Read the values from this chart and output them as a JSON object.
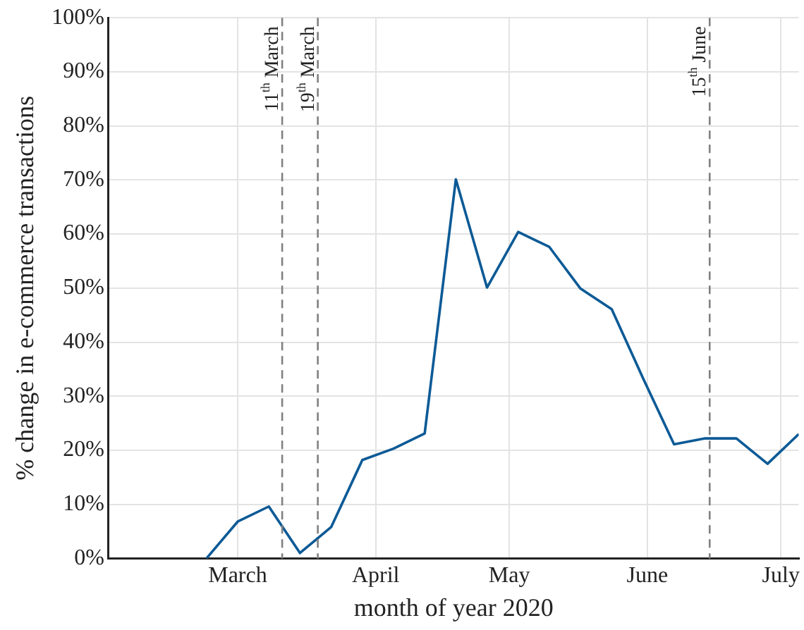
{
  "chart_data": {
    "type": "line",
    "xlabel": "month of year 2020",
    "ylabel": "% change in e-commerce transactions",
    "x": [
      "2020-02-23",
      "2020-03-01",
      "2020-03-08",
      "2020-03-15",
      "2020-03-22",
      "2020-03-29",
      "2020-04-05",
      "2020-04-12",
      "2020-04-19",
      "2020-04-26",
      "2020-05-03",
      "2020-05-10",
      "2020-05-17",
      "2020-05-24",
      "2020-05-31",
      "2020-06-07",
      "2020-06-14",
      "2020-06-21",
      "2020-06-28",
      "2020-07-05"
    ],
    "series": [
      {
        "color": "#0c5a96",
        "values": [
          0,
          6.8,
          9.6,
          1,
          5.8,
          18.2,
          20.3,
          23.1,
          70.1,
          50.1,
          60.4,
          57.6,
          49.9,
          46.1,
          33.4,
          21.1,
          22.2,
          22.2,
          17.5,
          23
        ]
      }
    ],
    "xlim": [
      "2020-02-01",
      "2020-07-05"
    ],
    "xticks": [
      {
        "value": "2020-03-01",
        "label": "March"
      },
      {
        "value": "2020-04-01",
        "label": "April"
      },
      {
        "value": "2020-05-01",
        "label": "May"
      },
      {
        "value": "2020-06-01",
        "label": "June"
      },
      {
        "value": "2020-07-01",
        "label": "July"
      }
    ],
    "ylim": [
      0,
      100
    ],
    "yticks": [
      {
        "value": 0,
        "label": "0%"
      },
      {
        "value": 10,
        "label": "10%"
      },
      {
        "value": 20,
        "label": "20%"
      },
      {
        "value": 30,
        "label": "30%"
      },
      {
        "value": 40,
        "label": "40%"
      },
      {
        "value": 50,
        "label": "50%"
      },
      {
        "value": 60,
        "label": "60%"
      },
      {
        "value": 70,
        "label": "70%"
      },
      {
        "value": 80,
        "label": "80%"
      },
      {
        "value": 90,
        "label": "90%"
      },
      {
        "value": 100,
        "label": "100%"
      }
    ],
    "ref_lines": [
      {
        "axis": "x",
        "value": "2020-03-11",
        "label": "11$^{th}$ March",
        "color": "#808080",
        "line_style": "dashed"
      },
      {
        "axis": "x",
        "value": "2020-03-19",
        "label": "19$^{th}$ March",
        "color": "#808080",
        "line_style": "dashed"
      },
      {
        "axis": "x",
        "value": "2020-06-15",
        "label": "15$^{th}$ June",
        "color": "#808080",
        "line_style": "dashed"
      }
    ],
    "grid": true,
    "legend": false,
    "marker": "none",
    "line_style": "solid"
  }
}
